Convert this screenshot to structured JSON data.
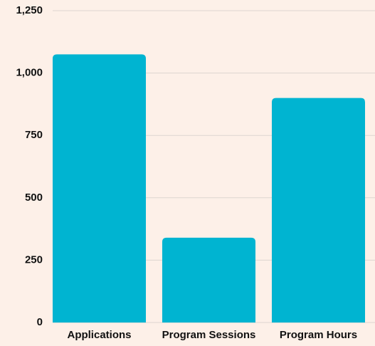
{
  "chart_data": {
    "type": "bar",
    "categories": [
      "Applications",
      "Program Sessions",
      "Program Hours"
    ],
    "values": [
      1075,
      340,
      900
    ],
    "color": "#00b4d1",
    "ylim": [
      0,
      1250
    ],
    "yticks": [
      0,
      250,
      500,
      750,
      {
        "value": 1000,
        "label": "1,000"
      },
      {
        "value": 1250,
        "label": "1,250"
      }
    ],
    "grid": true
  }
}
